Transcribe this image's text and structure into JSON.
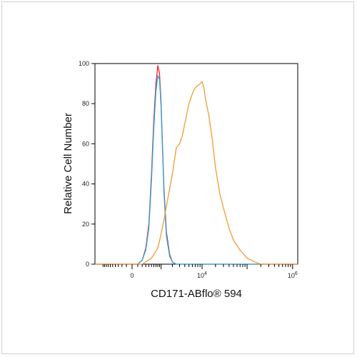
{
  "chart_data": {
    "type": "line",
    "title": "",
    "xlabel": "CD171-ABflo® 594",
    "ylabel": "Relative Cell Number",
    "xscale": "biexponential",
    "xlim": [
      -1000,
      10000000
    ],
    "ylim": [
      0,
      100
    ],
    "grid": false,
    "legend": "none",
    "y_ticks": [
      {
        "value": 0,
        "label": "0"
      },
      {
        "value": 20,
        "label": "20"
      },
      {
        "value": 40,
        "label": "40"
      },
      {
        "value": 60,
        "label": "60"
      },
      {
        "value": 80,
        "label": "80"
      },
      {
        "value": 100,
        "label": "100"
      }
    ],
    "x_ticks": [
      {
        "value": 0,
        "label": "0",
        "sup": ""
      },
      {
        "value": 10000,
        "label": "10",
        "sup": "4"
      },
      {
        "value": 1000000,
        "label": "10",
        "sup": "6"
      }
    ],
    "series": [
      {
        "color": "#e8242c",
        "x": [
          -300,
          100,
          200,
          300,
          400,
          500,
          600,
          700,
          800,
          900,
          1000,
          1100,
          1200,
          1400,
          1700,
          2000,
          2500,
          3000
        ],
        "y": [
          0,
          0,
          2,
          8,
          20,
          45,
          72,
          90,
          99,
          95,
          80,
          58,
          38,
          16,
          5,
          1,
          0,
          0
        ]
      },
      {
        "color": "#27a8dd",
        "x": [
          -300,
          100,
          200,
          300,
          400,
          500,
          600,
          700,
          800,
          900,
          1000,
          1100,
          1200,
          1400,
          1700,
          2000,
          2500,
          3000
        ],
        "y": [
          0,
          0,
          2,
          7,
          18,
          42,
          68,
          86,
          94,
          92,
          78,
          56,
          36,
          14,
          4,
          1,
          0,
          0
        ]
      },
      {
        "color": "#f39a34",
        "x": [
          200,
          500,
          800,
          1000,
          1200,
          1500,
          2000,
          2500,
          3000,
          3500,
          4000,
          5000,
          6000,
          7000,
          8000,
          9000,
          10000,
          11000,
          12000,
          14000,
          17000,
          20000,
          25000,
          30000,
          40000,
          50000,
          70000,
          100000,
          150000,
          200000,
          300000
        ],
        "y": [
          0,
          3,
          8,
          15,
          22,
          32,
          45,
          58,
          60,
          64,
          70,
          80,
          85,
          88,
          89,
          90,
          91,
          88,
          82,
          75,
          62,
          48,
          35,
          28,
          18,
          12,
          7,
          3,
          1,
          0,
          0
        ]
      }
    ]
  }
}
